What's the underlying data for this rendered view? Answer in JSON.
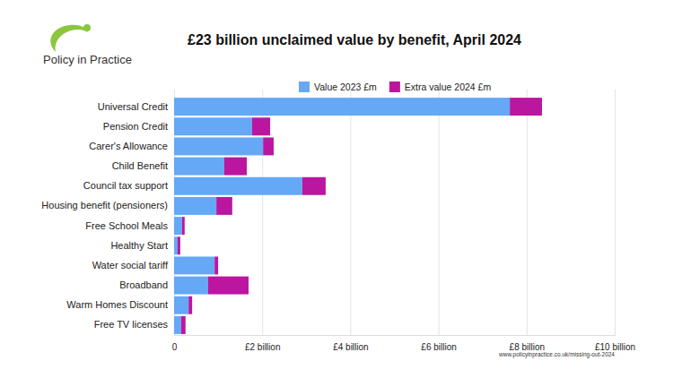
{
  "chart_data": {
    "type": "bar",
    "title": "£23 billion unclaimed value by benefit, April 2024",
    "annotations": [
      "Policy in Practice",
      "www.policyinpractice.co.uk/missing-out-2024"
    ],
    "orientation": "horizontal",
    "stacked": true,
    "grid": true,
    "legend": "top",
    "categories": [
      "Universal Credit",
      "Pension Credit",
      "Carer's Allowance",
      "Child Benefit",
      "Council tax support",
      "Housing benefit (pensioners)",
      "Free School Meals",
      "Healthy Start",
      "Water social tariff",
      "Broadband",
      "Warm Homes Discount",
      "Free TV licenses"
    ],
    "series": [
      {
        "name": "Value 2023 £m",
        "color": "#64a8f6",
        "values": [
          7.62,
          1.77,
          2.02,
          1.14,
          2.91,
          0.96,
          0.18,
          0.08,
          0.92,
          0.77,
          0.33,
          0.16
        ]
      },
      {
        "name": "Extra value 2024 £m",
        "color": "#bb169f",
        "values": [
          0.73,
          0.41,
          0.24,
          0.51,
          0.53,
          0.36,
          0.06,
          0.06,
          0.08,
          0.92,
          0.08,
          0.1
        ]
      }
    ],
    "xlim": [
      0,
      10
    ],
    "xticks": [
      0,
      {
        "value": 2,
        "label": "£2 billion"
      },
      {
        "value": 4,
        "label": "£4 billion"
      },
      {
        "value": 6,
        "label": "£6 billion"
      },
      {
        "value": 8,
        "label": "£8 billion"
      },
      {
        "value": 10,
        "label": "£10 billion"
      }
    ]
  }
}
